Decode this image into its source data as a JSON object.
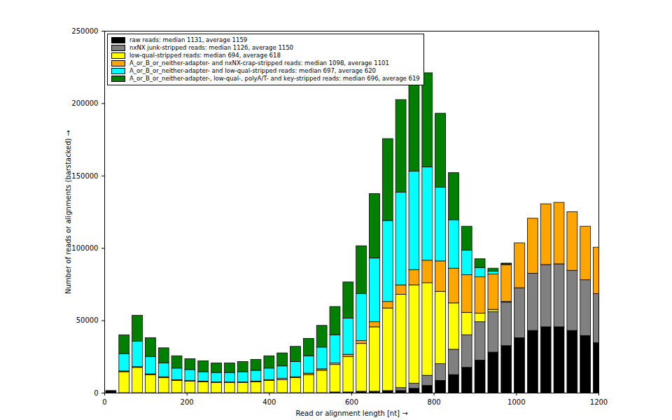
{
  "chart_data": {
    "type": "histogram",
    "x_label": "Read or alignment length [nt]",
    "y_label": "Number of reads or alignments (barstacked)",
    "bins": [
      0,
      32,
      64,
      96,
      128,
      160,
      192,
      224,
      256,
      288,
      320,
      352,
      384,
      416,
      448,
      480,
      512,
      544,
      576,
      608,
      640,
      672,
      704,
      736,
      768,
      800,
      832,
      864,
      896,
      928,
      960,
      992,
      1024,
      1056,
      1088,
      1120,
      1152,
      1184,
      1216
    ],
    "series": [
      {
        "name": "raw reads: median 1131, average 1159",
        "color": "#000000",
        "values": [
          1500,
          0,
          0,
          0,
          0,
          0,
          0,
          0,
          0,
          0,
          0,
          0,
          0,
          0,
          0,
          0,
          0,
          0,
          0,
          500,
          500,
          1000,
          1500,
          3000,
          5000,
          8500,
          12500,
          17500,
          22500,
          28000,
          32500,
          38000,
          43000,
          45500,
          45500,
          43000,
          39500,
          34500
        ]
      },
      {
        "name": "nxNX junk-stripped reads: median 1126, average 1150",
        "color": "#808080",
        "values": [
          0,
          0,
          0,
          0,
          0,
          0,
          0,
          0,
          0,
          0,
          0,
          0,
          0,
          0,
          0,
          0,
          0,
          500,
          500,
          500,
          500,
          500,
          2000,
          3500,
          7000,
          11500,
          17500,
          22500,
          26500,
          28000,
          30000,
          34500,
          39500,
          43000,
          43500,
          41500,
          38500,
          34000
        ]
      },
      {
        "name": "low-qual-stripped reads: median 694, average 618",
        "color": "#ffff00",
        "values": [
          0,
          14500,
          17500,
          12500,
          10500,
          8500,
          8000,
          7500,
          7000,
          7000,
          7000,
          7500,
          8500,
          9000,
          10500,
          12500,
          15500,
          19000,
          24500,
          33000,
          44500,
          57000,
          64500,
          68000,
          64000,
          50000,
          32000,
          15500,
          6000,
          1500,
          500,
          0,
          0,
          0,
          0,
          0,
          0,
          0
        ]
      },
      {
        "name": "A_or_B_or_neither-adapter- and nxNX-crap-stripped reads: median 1098, average 1101",
        "color": "#ffa500",
        "values": [
          0,
          500,
          500,
          500,
          500,
          500,
          500,
          500,
          500,
          500,
          500,
          500,
          500,
          1000,
          500,
          1000,
          1000,
          1000,
          1500,
          2000,
          3500,
          4500,
          6500,
          10500,
          15500,
          21000,
          24000,
          26000,
          25000,
          24500,
          25500,
          31000,
          38000,
          42000,
          42500,
          40500,
          37000,
          32000
        ]
      },
      {
        "name": "A_or_B_or_neither-adapter- and low-qual-stripped reads: median 697, average 620",
        "color": "#00ffff",
        "values": [
          0,
          12000,
          17500,
          12000,
          9500,
          8000,
          7500,
          6500,
          6500,
          6500,
          7000,
          7500,
          8000,
          8500,
          10500,
          12000,
          15000,
          19500,
          25000,
          32500,
          44000,
          56000,
          64000,
          68000,
          64500,
          51000,
          33500,
          17000,
          6500,
          2000,
          500,
          0,
          0,
          0,
          0,
          0,
          0,
          0
        ]
      },
      {
        "name": "A_or_B_or_neither-adapter-, low-qual-, polyA/T- and key-stripped reads: median 696, average 619",
        "color": "#008000",
        "values": [
          0,
          13000,
          18000,
          13000,
          10500,
          8500,
          7500,
          7500,
          6500,
          6500,
          7000,
          7500,
          8500,
          9000,
          10500,
          12000,
          15000,
          19500,
          25000,
          33000,
          44500,
          56500,
          64000,
          68000,
          65000,
          51000,
          32500,
          16500,
          6000,
          2000,
          500,
          0,
          0,
          0,
          0,
          0,
          0,
          0
        ]
      }
    ],
    "stacked": true,
    "xlim": [
      0,
      1200
    ],
    "xticks": [
      0,
      200,
      400,
      600,
      800,
      1000,
      1200
    ],
    "ylim": [
      0,
      250000
    ],
    "yticks": [
      0,
      50000,
      100000,
      150000,
      200000,
      250000
    ],
    "grid": false,
    "legend": "upper left"
  }
}
